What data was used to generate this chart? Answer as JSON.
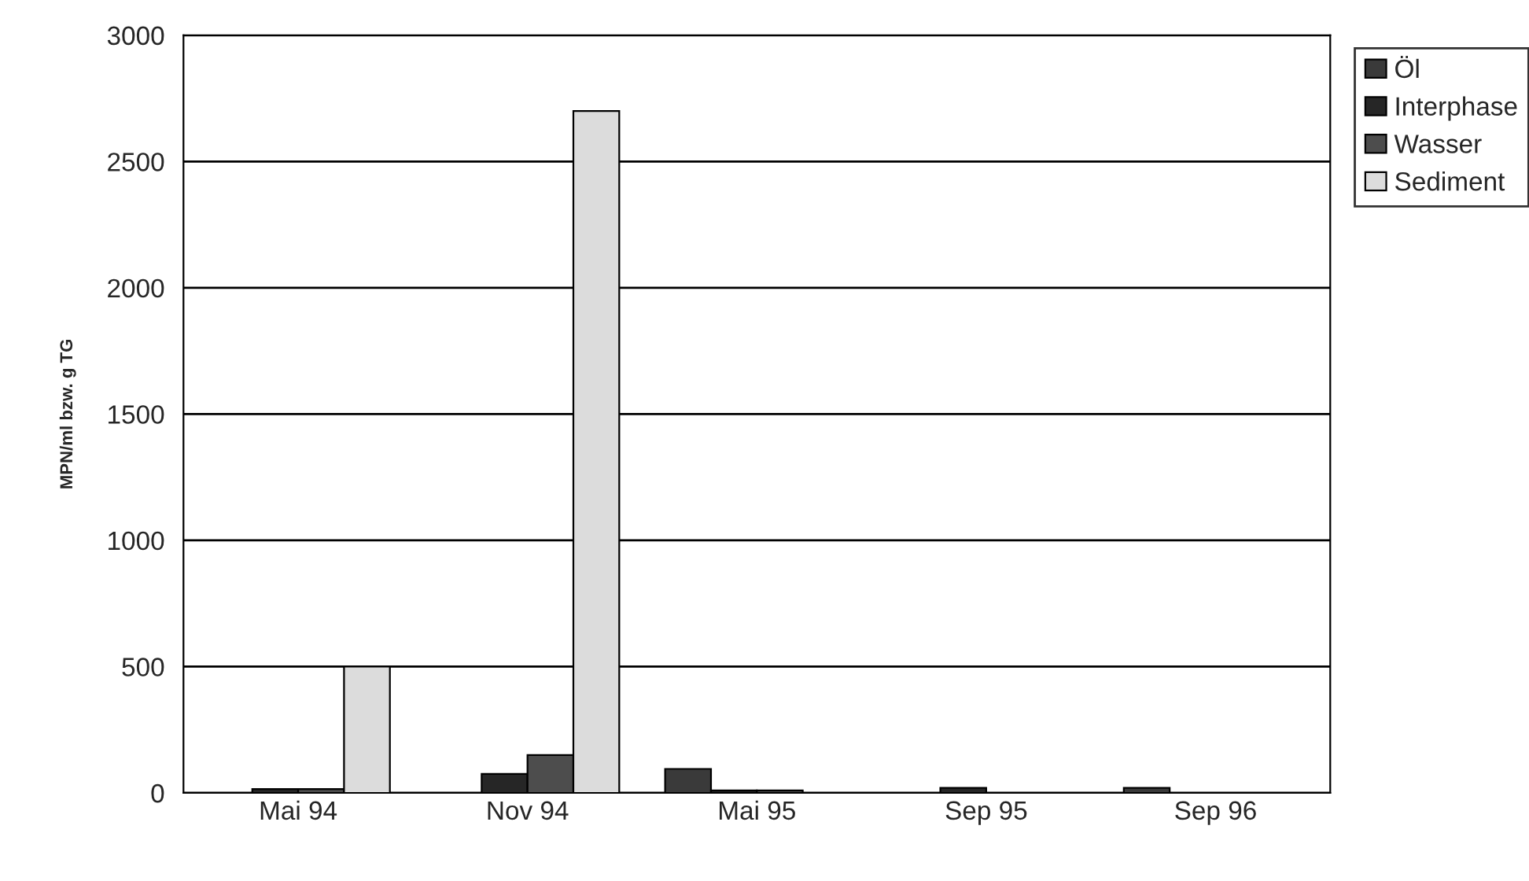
{
  "chart_data": {
    "type": "bar",
    "ylabel": "MPN/ml bzw. g TG",
    "categories": [
      "Mai 94",
      "Nov 94",
      "Mai 95",
      "Sep 95",
      "Sep 96"
    ],
    "series": [
      {
        "name": "Öl",
        "color": "#3a3a3a",
        "values": [
          null,
          null,
          95,
          null,
          20
        ]
      },
      {
        "name": "Interphase",
        "color": "#262626",
        "values": [
          15,
          75,
          10,
          20,
          null
        ]
      },
      {
        "name": "Wasser",
        "color": "#4d4d4d",
        "values": [
          15,
          150,
          10,
          null,
          null
        ]
      },
      {
        "name": "Sediment",
        "color": "#dcdcdc",
        "values": [
          500,
          2700,
          null,
          null,
          null
        ]
      }
    ],
    "ylim": [
      0,
      3000
    ],
    "yticks": [
      0,
      500,
      1000,
      1500,
      2000,
      2500,
      3000
    ],
    "grid": "y",
    "legend": "top right"
  }
}
